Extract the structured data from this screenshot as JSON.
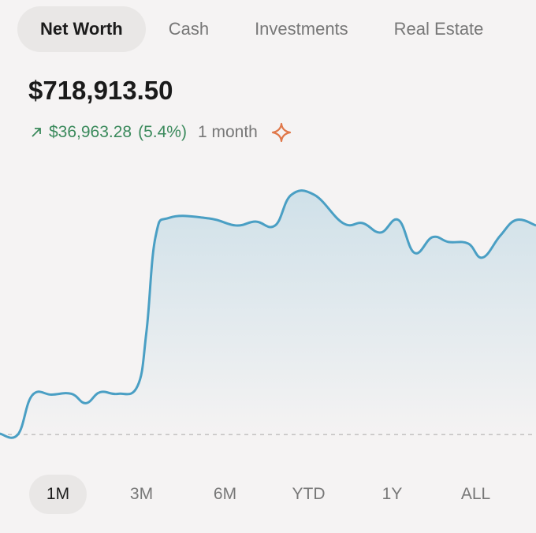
{
  "header": {
    "tabs": [
      "Net Worth",
      "Cash",
      "Investments",
      "Real Estate"
    ],
    "selected_tab": 0,
    "amount": "$718,913.50",
    "change": "$36,963.28",
    "change_percent": "(5.4%)",
    "period": "1 month"
  },
  "chart_data": {
    "type": "area",
    "color": "#4a9fc4",
    "xlim": [
      0,
      30
    ],
    "ylim": [
      678000,
      730000
    ],
    "reference_line": 681950,
    "x": [
      0,
      1.0,
      1.8,
      2.9,
      4.0,
      4.8,
      5.6,
      6.6,
      7.7,
      8.2,
      8.7,
      9.5,
      11.7,
      13.2,
      14.3,
      15.4,
      16.3,
      17.6,
      19.2,
      20.3,
      21.3,
      22.3,
      23.2,
      24.2,
      25.1,
      26.2,
      27.0,
      28.0,
      28.9,
      30
    ],
    "series": [
      {
        "values": [
          682090,
          681950,
          688750,
          688880,
          689020,
          687390,
          689290,
          689020,
          690380,
          699890,
          716200,
          719590,
          719460,
          718240,
          718920,
          718240,
          723540,
          723540,
          718640,
          718640,
          717010,
          719190,
          713480,
          716200,
          715380,
          715110,
          712660,
          716470,
          719190,
          718240
        ]
      }
    ]
  },
  "ranges": {
    "items": [
      "1M",
      "3M",
      "6M",
      "YTD",
      "1Y",
      "ALL"
    ],
    "selected": 0
  }
}
